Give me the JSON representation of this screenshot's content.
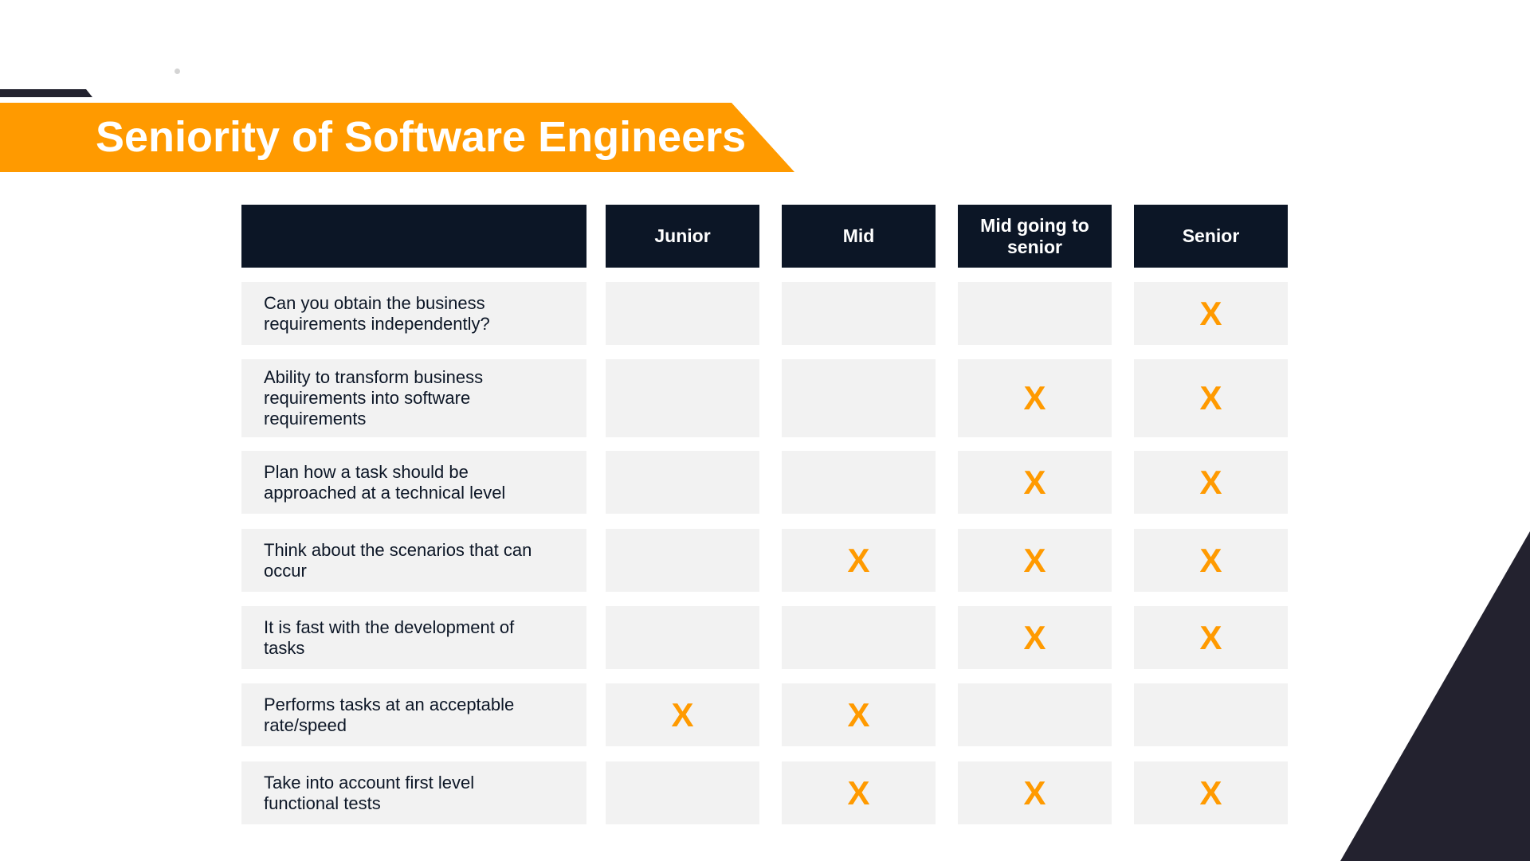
{
  "slide": {
    "title": "Seniority of Software Engineers"
  },
  "table": {
    "columns": [
      {
        "label": "Junior"
      },
      {
        "label": "Mid"
      },
      {
        "label": "Mid going to senior"
      },
      {
        "label": "Senior"
      }
    ],
    "mark_symbol": "X",
    "rows": [
      {
        "label": "Can you obtain the business requirements independently?",
        "marks": [
          false,
          false,
          false,
          true
        ]
      },
      {
        "label": "Ability to transform business requirements into software requirements",
        "marks": [
          false,
          false,
          true,
          true
        ]
      },
      {
        "label": "Plan how a task should be approached at a technical level",
        "marks": [
          false,
          false,
          true,
          true
        ]
      },
      {
        "label": "Think about the scenarios that can occur",
        "marks": [
          false,
          true,
          true,
          true
        ]
      },
      {
        "label": "It is fast with the development of tasks",
        "marks": [
          false,
          false,
          true,
          true
        ]
      },
      {
        "label": "Performs tasks at an acceptable rate/speed",
        "marks": [
          true,
          true,
          false,
          false
        ]
      },
      {
        "label": "Take into account first level functional tests",
        "marks": [
          false,
          true,
          true,
          true
        ]
      }
    ]
  },
  "colors": {
    "accent": "#ff9a00",
    "header_bg": "#0c1626",
    "cell_bg": "#f2f2f2",
    "dark_shape": "#23222f"
  }
}
